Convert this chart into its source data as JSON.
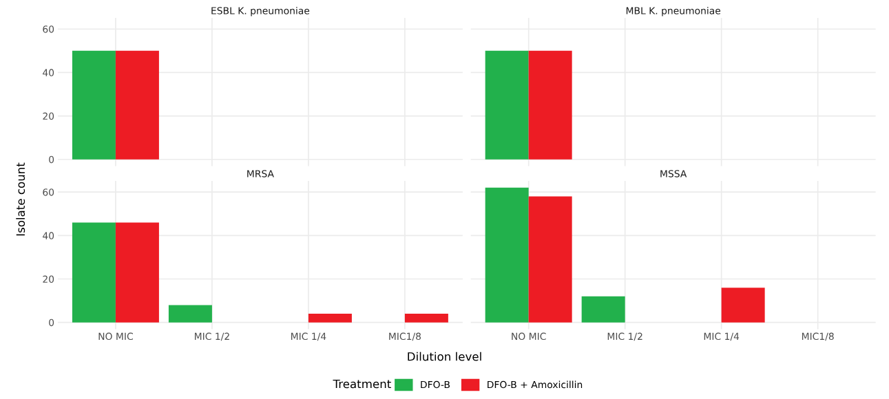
{
  "chart_data": [
    {
      "type": "bar",
      "title": "ESBL K. pneumoniae",
      "ylabel": "Isolate count",
      "legend_title": "Treatment",
      "legend": "bottom",
      "grid": true,
      "tick_labels": "y",
      "categories": [
        "NO MIC",
        "MIC 1/2",
        "MIC 1/4",
        "MIC1/8"
      ],
      "ylim": [
        -3.1,
        65.1
      ],
      "yticks": [
        0,
        20,
        40,
        60
      ],
      "series": [
        {
          "name": "DFO-B",
          "color": "#22b14c",
          "values": [
            50,
            0,
            0,
            0
          ]
        },
        {
          "name": "DFO-B + Amoxicillin",
          "color": "#ed1c24",
          "values": [
            50,
            0,
            0,
            0
          ]
        }
      ]
    },
    {
      "type": "bar",
      "title": "MBL K. pneumoniae",
      "grid": true,
      "tick_labels": false,
      "categories": [
        "NO MIC",
        "MIC 1/2",
        "MIC 1/4",
        "MIC1/8"
      ],
      "ylim": [
        -3.1,
        65.1
      ],
      "yticks": [
        0,
        20,
        40,
        60
      ],
      "series": [
        {
          "name": "DFO-B",
          "color": "#22b14c",
          "values": [
            50,
            0,
            0,
            0
          ]
        },
        {
          "name": "DFO-B + Amoxicillin",
          "color": "#ed1c24",
          "values": [
            50,
            0,
            0,
            0
          ]
        }
      ]
    },
    {
      "type": "bar",
      "title": "MRSA",
      "xlabel": "Dilution level",
      "grid": true,
      "categories": [
        "NO MIC",
        "MIC 1/2",
        "MIC 1/4",
        "MIC1/8"
      ],
      "ylim": [
        -3.1,
        65.1
      ],
      "yticks": [
        0,
        20,
        40,
        60
      ],
      "series": [
        {
          "name": "DFO-B",
          "color": "#22b14c",
          "values": [
            46,
            8,
            0,
            0
          ]
        },
        {
          "name": "DFO-B + Amoxicillin",
          "color": "#ed1c24",
          "values": [
            46,
            0,
            4,
            4
          ]
        }
      ]
    },
    {
      "type": "bar",
      "title": "MSSA",
      "grid": true,
      "tick_labels": "x",
      "categories": [
        "NO MIC",
        "MIC 1/2",
        "MIC 1/4",
        "MIC1/8"
      ],
      "ylim": [
        -3.1,
        65.1
      ],
      "yticks": [
        0,
        20,
        40,
        60
      ],
      "series": [
        {
          "name": "DFO-B",
          "color": "#22b14c",
          "values": [
            62,
            12,
            0,
            0
          ]
        },
        {
          "name": "DFO-B + Amoxicillin",
          "color": "#ed1c24",
          "values": [
            58,
            0,
            16,
            0
          ]
        }
      ]
    }
  ]
}
